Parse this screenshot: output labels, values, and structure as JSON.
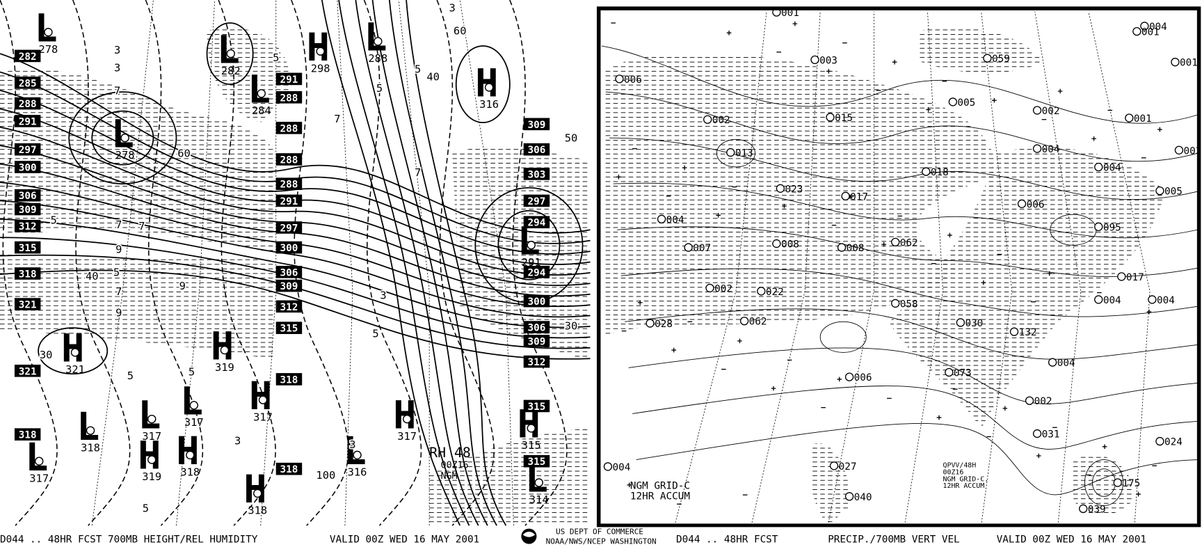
{
  "left_panel": {
    "centers": [
      {
        "letter": "L",
        "value": "278"
      },
      {
        "letter": "L",
        "value": "282"
      },
      {
        "letter": "H",
        "value": "298"
      },
      {
        "letter": "L",
        "value": "288"
      },
      {
        "letter": "L",
        "value": "284"
      },
      {
        "letter": "H",
        "value": "316"
      },
      {
        "letter": "L",
        "value": "278"
      },
      {
        "letter": "L",
        "value": "291"
      },
      {
        "letter": "H",
        "value": "321"
      },
      {
        "letter": "H",
        "value": "319"
      },
      {
        "letter": "L",
        "value": "317"
      },
      {
        "letter": "L",
        "value": "317"
      },
      {
        "letter": "L",
        "value": "318"
      },
      {
        "letter": "H",
        "value": "317"
      },
      {
        "letter": "H",
        "value": "319"
      },
      {
        "letter": "H",
        "value": "318"
      },
      {
        "letter": "L",
        "value": "317"
      },
      {
        "letter": "H",
        "value": "318"
      },
      {
        "letter": "L",
        "value": "316"
      },
      {
        "letter": "H",
        "value": "317"
      },
      {
        "letter": "H",
        "value": "315"
      },
      {
        "letter": "L",
        "value": "314"
      }
    ],
    "height_labels": [
      "282",
      "285",
      "288",
      "291",
      "297",
      "300",
      "306",
      "309",
      "312",
      "315",
      "318",
      "321",
      "321",
      "318",
      "291",
      "288",
      "288",
      "288",
      "288",
      "291",
      "297",
      "300",
      "306",
      "309",
      "312",
      "315",
      "318",
      "318",
      "309",
      "306",
      "303",
      "297",
      "294",
      "294",
      "300",
      "306",
      "309",
      "312",
      "315",
      "315"
    ],
    "contour_labels": [
      "3",
      "3",
      "7",
      "5",
      "7",
      "9",
      "60",
      "5",
      "7",
      "9",
      "5",
      "7",
      "9",
      "3",
      "5",
      "40",
      "60",
      "40",
      "50",
      "30",
      "30",
      "5",
      "7",
      "3",
      "5",
      "5",
      "3",
      "100",
      "7",
      "3",
      "5",
      "5"
    ],
    "annotation": [
      "RH 48",
      "00Z16",
      "NGM"
    ]
  },
  "right_panel": {
    "amounts": [
      "001",
      "004",
      "001",
      "006",
      "003",
      "059",
      "001",
      "002",
      "001",
      "002",
      "015",
      "005",
      "013",
      "004",
      "003",
      "004",
      "018",
      "023",
      "017",
      "005",
      "004",
      "006",
      "007",
      "008",
      "008",
      "062",
      "095",
      "002",
      "022",
      "017",
      "004",
      "004",
      "058",
      "028",
      "062",
      "030",
      "132",
      "073",
      "004",
      "006",
      "002",
      "031",
      "024",
      "027",
      "004",
      "040",
      "175",
      "039"
    ],
    "legend": [
      "NGM GRID-C",
      "12HR ACCUM"
    ],
    "stamp": [
      "QPVV/48H",
      "00Z16",
      "NGM GRID-C.",
      "12HR ACCUM"
    ]
  },
  "footer": {
    "left_title": "D044 .. 48HR FCST 700MB HEIGHT/REL HUMIDITY",
    "left_valid": "VALID 00Z WED 16 MAY 2001",
    "agency_1": "US DEPT OF COMMERCE",
    "agency_2": "NOAA/NWS/NCEP WASHINGTON",
    "right_title": "D044 .. 48HR FCST",
    "right_product": "PRECIP./700MB VERT VEL",
    "right_valid": "VALID 00Z WED 16 MAY 2001"
  }
}
